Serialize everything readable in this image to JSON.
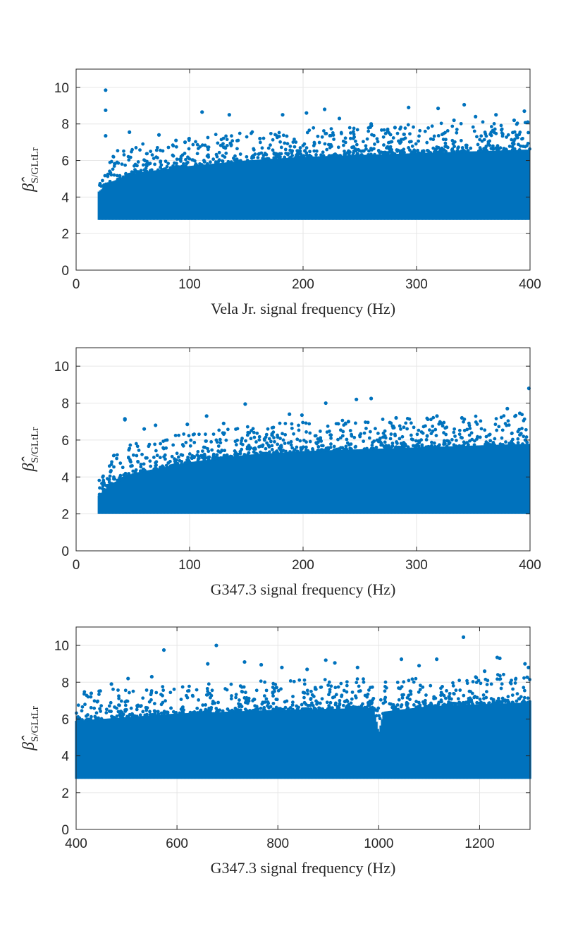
{
  "chart_data": [
    {
      "type": "scatter",
      "title": "",
      "xlabel": "Vela Jr. signal frequency (Hz)",
      "ylabel": {
        "symbol": "β̂",
        "subscript": "S/GLtLr"
      },
      "xlim": [
        0,
        400
      ],
      "ylim": [
        0,
        11
      ],
      "xticks": [
        "0",
        "100",
        "200",
        "300",
        "400"
      ],
      "yticks": [
        "0",
        "2",
        "4",
        "6",
        "8",
        "10"
      ],
      "grid": true,
      "color": "#0072BD",
      "series": [
        {
          "band": {
            "x_start": 20,
            "x_end": 400,
            "floor": 2.75,
            "upper_envelope": [
              [
                20,
                4.3
              ],
              [
                30,
                4.8
              ],
              [
                50,
                5.3
              ],
              [
                100,
                5.7
              ],
              [
                150,
                6.0
              ],
              [
                200,
                6.2
              ],
              [
                300,
                6.4
              ],
              [
                400,
                6.6
              ]
            ]
          },
          "outliers": [
            [
              26,
              9.85
            ],
            [
              26,
              8.75
            ],
            [
              26,
              7.35
            ],
            [
              47,
              7.55
            ],
            [
              73,
              7.4
            ],
            [
              111,
              8.65
            ],
            [
              135,
              8.5
            ],
            [
              182,
              8.5
            ],
            [
              203,
              8.6
            ],
            [
              219,
              8.8
            ],
            [
              232,
              8.3
            ],
            [
              260,
              8.0
            ],
            [
              293,
              8.9
            ],
            [
              319,
              8.85
            ],
            [
              342,
              9.05
            ],
            [
              352,
              8.4
            ],
            [
              370,
              8.5
            ],
            [
              386,
              8.2
            ],
            [
              395,
              8.7
            ],
            [
              398,
              8.1
            ],
            [
              88,
              7.1
            ],
            [
              96,
              7.0
            ],
            [
              162,
              7.2
            ],
            [
              281,
              7.8
            ],
            [
              333,
              8.2
            ]
          ]
        }
      ]
    },
    {
      "type": "scatter",
      "title": "",
      "xlabel": "G347.3 signal frequency (Hz)",
      "ylabel": {
        "symbol": "β̂",
        "subscript": "S/GLtLr"
      },
      "xlim": [
        0,
        400
      ],
      "ylim": [
        0,
        11
      ],
      "xticks": [
        "0",
        "100",
        "200",
        "300",
        "400"
      ],
      "yticks": [
        "0",
        "2",
        "4",
        "6",
        "8",
        "10"
      ],
      "grid": true,
      "color": "#0072BD",
      "series": [
        {
          "band": {
            "x_start": 20,
            "x_end": 400,
            "floor": 2.0,
            "upper_envelope": [
              [
                20,
                3.0
              ],
              [
                30,
                3.6
              ],
              [
                50,
                4.2
              ],
              [
                100,
                4.8
              ],
              [
                150,
                5.2
              ],
              [
                200,
                5.4
              ],
              [
                300,
                5.6
              ],
              [
                400,
                5.8
              ]
            ]
          },
          "outliers": [
            [
              43,
              7.15
            ],
            [
              43,
              7.1
            ],
            [
              70,
              6.8
            ],
            [
              98,
              6.85
            ],
            [
              115,
              7.3
            ],
            [
              149,
              7.95
            ],
            [
              188,
              7.4
            ],
            [
              199,
              7.35
            ],
            [
              220,
              8.0
            ],
            [
              247,
              8.2
            ],
            [
              260,
              8.25
            ],
            [
              282,
              7.2
            ],
            [
              318,
              7.3
            ],
            [
              380,
              7.7
            ],
            [
              391,
              7.45
            ],
            [
              399,
              8.8
            ],
            [
              60,
              6.6
            ],
            [
              130,
              6.9
            ],
            [
              240,
              7.0
            ],
            [
              340,
              7.2
            ]
          ]
        }
      ]
    },
    {
      "type": "scatter",
      "title": "",
      "xlabel": "G347.3 signal frequency (Hz)",
      "ylabel": {
        "symbol": "β̂",
        "subscript": "S/GLtLr"
      },
      "xlim": [
        400,
        1300
      ],
      "ylim": [
        0,
        11
      ],
      "xticks": [
        "400",
        "600",
        "800",
        "1000",
        "1200"
      ],
      "yticks": [
        "0",
        "2",
        "4",
        "6",
        "8",
        "10"
      ],
      "grid": true,
      "color": "#0072BD",
      "series": [
        {
          "band": {
            "x_start": 400,
            "x_end": 1300,
            "floor": 2.75,
            "upper_envelope": [
              [
                400,
                5.9
              ],
              [
                500,
                6.1
              ],
              [
                600,
                6.3
              ],
              [
                800,
                6.5
              ],
              [
                990,
                6.6
              ],
              [
                1000,
                5.2
              ],
              [
                1010,
                6.4
              ],
              [
                1100,
                6.7
              ],
              [
                1300,
                6.9
              ]
            ]
          },
          "outliers": [
            [
              574,
              9.75
            ],
            [
              678,
              10.0
            ],
            [
              661,
              9.0
            ],
            [
              734,
              9.1
            ],
            [
              767,
              8.95
            ],
            [
              808,
              8.8
            ],
            [
              895,
              9.2
            ],
            [
              913,
              9.05
            ],
            [
              1045,
              9.25
            ],
            [
              1115,
              9.25
            ],
            [
              1168,
              10.45
            ],
            [
              1235,
              9.35
            ],
            [
              1240,
              9.3
            ],
            [
              1290,
              9.0
            ],
            [
              1297,
              8.8
            ],
            [
              503,
              8.2
            ],
            [
              550,
              8.3
            ],
            [
              470,
              7.9
            ],
            [
              430,
              7.4
            ],
            [
              858,
              8.7
            ],
            [
              958,
              8.8
            ],
            [
              1080,
              8.9
            ],
            [
              1210,
              8.6
            ]
          ]
        }
      ]
    }
  ]
}
